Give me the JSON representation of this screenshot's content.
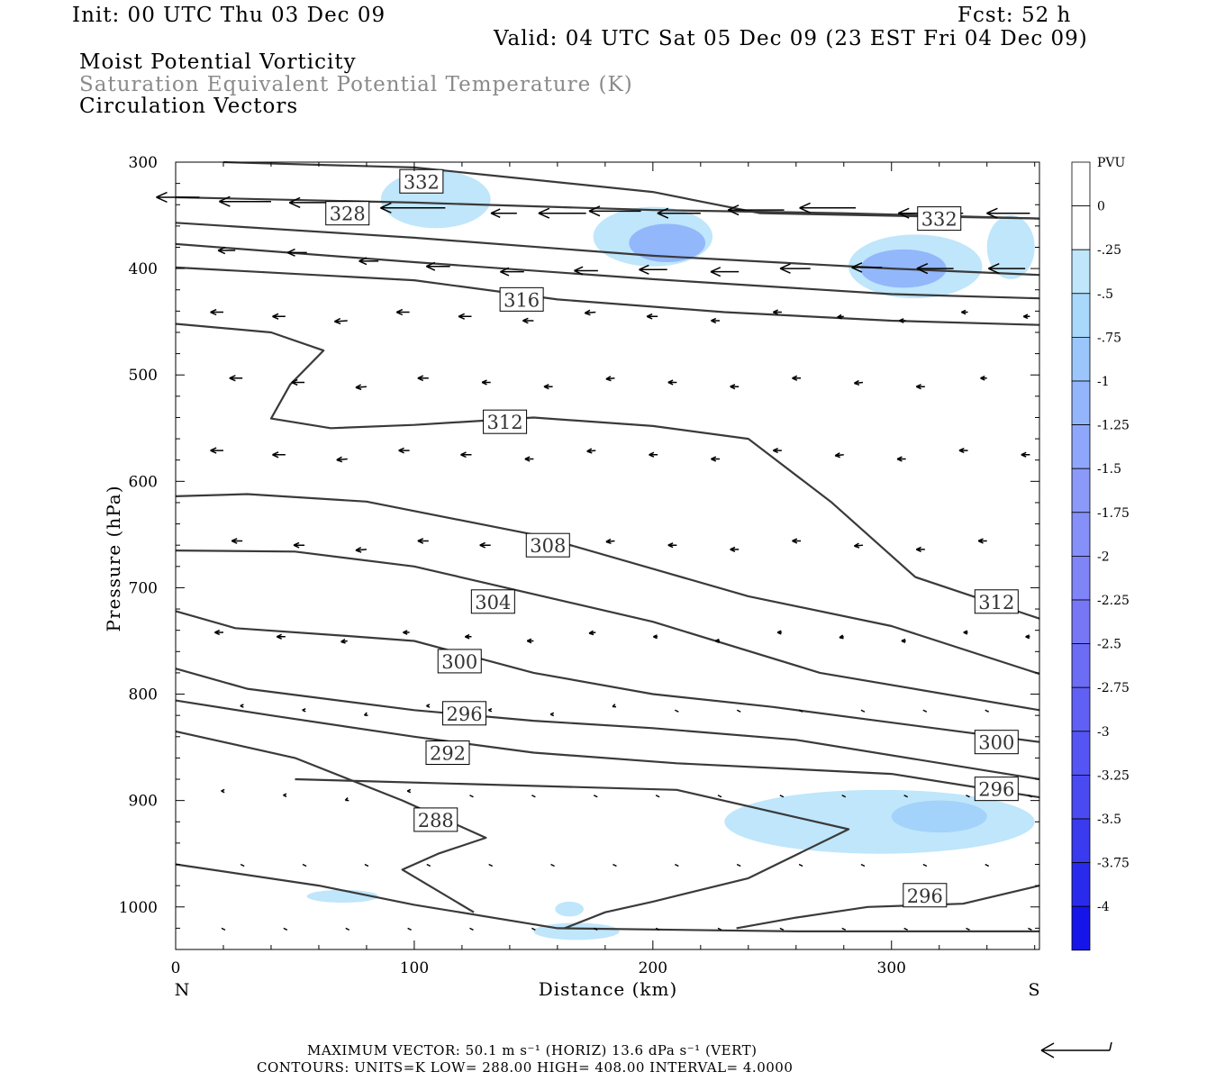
{
  "header": {
    "init": "Init: 00 UTC Thu 03 Dec 09",
    "fcst": "Fcst:   52 h",
    "valid": "Valid: 04 UTC Sat 05 Dec 09 (23 EST Fri 04 Dec 09)",
    "line1": "Moist Potential Vorticity",
    "line2": "Saturation Equivalent Potential Temperature (K)",
    "line3": "Circulation Vectors"
  },
  "footer": {
    "max_vector": "MAXIMUM VECTOR:  50.1 m s⁻¹ (HORIZ)        13.6 dPa s⁻¹ (VERT)",
    "contours": "CONTOURS:  UNITS=K  LOW=  288.00        HIGH=  408.00        INTERVAL=    4.0000"
  },
  "colors": {
    "contour": "#3a3a3a",
    "shade": [
      "#bfe6fb",
      "#a3d2fa",
      "#93b7fb",
      "#8b9ff9",
      "#7f85f7",
      "#6c6cf5",
      "#5555f3",
      "#3a3aee",
      "#1e1eea",
      "#0000e6"
    ]
  },
  "chart_data": {
    "type": "cross-section",
    "xlabel": "Distance (km)",
    "ylabel": "Pressure (hPa)",
    "xlim": [
      0,
      362
    ],
    "ylim": [
      1040,
      300
    ],
    "x_ticks": [
      "0",
      "100",
      "200",
      "300"
    ],
    "x_end_labels": {
      "left": "N",
      "right": "S"
    },
    "y_ticks": [
      "300",
      "400",
      "500",
      "600",
      "700",
      "800",
      "900",
      "1000"
    ],
    "colorbar": {
      "title": "PVU",
      "labels": [
        "0",
        "-.25",
        "-.5",
        "-.75",
        "-1",
        "-1.25",
        "-1.5",
        "-1.75",
        "-2",
        "-2.25",
        "-2.5",
        "-2.75",
        "-3",
        "-3.25",
        "-3.5",
        "-3.75",
        "-4"
      ]
    },
    "contour_labels": [
      {
        "text": "332",
        "x": 103,
        "p": 318
      },
      {
        "text": "328",
        "x": 72,
        "p": 348
      },
      {
        "text": "332",
        "x": 320,
        "p": 353
      },
      {
        "text": "316",
        "x": 145,
        "p": 429
      },
      {
        "text": "312",
        "x": 138,
        "p": 544
      },
      {
        "text": "308",
        "x": 156,
        "p": 660
      },
      {
        "text": "304",
        "x": 133,
        "p": 713
      },
      {
        "text": "312",
        "x": 344,
        "p": 713
      },
      {
        "text": "300",
        "x": 119,
        "p": 769
      },
      {
        "text": "296",
        "x": 121,
        "p": 818
      },
      {
        "text": "292",
        "x": 114,
        "p": 855
      },
      {
        "text": "300",
        "x": 344,
        "p": 845
      },
      {
        "text": "296",
        "x": 344,
        "p": 889
      },
      {
        "text": "288",
        "x": 109,
        "p": 918
      },
      {
        "text": "296",
        "x": 314,
        "p": 989
      }
    ],
    "theta_e_contours": [
      [
        [
          20,
          300
        ],
        [
          100,
          305
        ],
        [
          200,
          328
        ],
        [
          245,
          348
        ],
        [
          362,
          353
        ]
      ],
      [
        [
          0,
          333
        ],
        [
          100,
          338
        ],
        [
          200,
          345
        ],
        [
          280,
          348
        ],
        [
          362,
          353
        ]
      ],
      [
        [
          0,
          357
        ],
        [
          100,
          371
        ],
        [
          200,
          388
        ],
        [
          300,
          400
        ],
        [
          362,
          406
        ]
      ],
      [
        [
          0,
          377
        ],
        [
          100,
          394
        ],
        [
          200,
          410
        ],
        [
          300,
          424
        ],
        [
          362,
          428
        ]
      ],
      [
        [
          0,
          399
        ],
        [
          100,
          411
        ],
        [
          160,
          429
        ],
        [
          230,
          441
        ],
        [
          300,
          449
        ],
        [
          362,
          453
        ]
      ],
      [
        [
          0,
          452
        ],
        [
          40,
          460
        ],
        [
          62,
          477
        ],
        [
          48,
          509
        ],
        [
          40,
          541
        ],
        [
          65,
          550
        ],
        [
          100,
          547
        ],
        [
          150,
          540
        ],
        [
          200,
          548
        ],
        [
          240,
          560
        ],
        [
          275,
          620
        ],
        [
          310,
          690
        ],
        [
          362,
          729
        ]
      ],
      [
        [
          0,
          614
        ],
        [
          30,
          612
        ],
        [
          80,
          619
        ],
        [
          150,
          650
        ],
        [
          240,
          708
        ],
        [
          300,
          736
        ],
        [
          362,
          781
        ]
      ],
      [
        [
          0,
          665
        ],
        [
          50,
          666
        ],
        [
          100,
          680
        ],
        [
          200,
          732
        ],
        [
          270,
          780
        ],
        [
          362,
          815
        ]
      ],
      [
        [
          0,
          722
        ],
        [
          25,
          738
        ],
        [
          70,
          745
        ],
        [
          100,
          750
        ],
        [
          150,
          780
        ],
        [
          200,
          800
        ],
        [
          250,
          812
        ],
        [
          362,
          845
        ]
      ],
      [
        [
          0,
          776
        ],
        [
          30,
          795
        ],
        [
          100,
          815
        ],
        [
          150,
          825
        ],
        [
          200,
          832
        ],
        [
          260,
          843
        ],
        [
          362,
          880
        ]
      ],
      [
        [
          0,
          806
        ],
        [
          40,
          820
        ],
        [
          100,
          840
        ],
        [
          150,
          855
        ],
        [
          210,
          865
        ],
        [
          300,
          875
        ],
        [
          362,
          897
        ]
      ],
      [
        [
          0,
          835
        ],
        [
          50,
          860
        ],
        [
          95,
          900
        ],
        [
          130,
          935
        ],
        [
          110,
          950
        ],
        [
          95,
          965
        ],
        [
          125,
          1005
        ]
      ],
      [
        [
          163,
          1020
        ],
        [
          180,
          1005
        ],
        [
          200,
          995
        ],
        [
          240,
          973
        ],
        [
          282,
          927
        ],
        [
          210,
          890
        ],
        [
          50,
          880
        ]
      ],
      [
        [
          235,
          1020
        ],
        [
          260,
          1010
        ],
        [
          290,
          1000
        ],
        [
          330,
          997
        ],
        [
          362,
          980
        ]
      ],
      [
        [
          0,
          960
        ],
        [
          60,
          980
        ],
        [
          100,
          998
        ],
        [
          160,
          1020
        ],
        [
          260,
          1023
        ],
        [
          362,
          1023
        ]
      ]
    ],
    "pv_shading": [
      {
        "x": 109,
        "p": 335,
        "rx": 23,
        "rp": 27,
        "level": 1
      },
      {
        "x": 200,
        "p": 370,
        "rx": 25,
        "rp": 28,
        "level": 1
      },
      {
        "x": 206,
        "p": 376,
        "rx": 16,
        "rp": 18,
        "level": 3
      },
      {
        "x": 310,
        "p": 398,
        "rx": 28,
        "rp": 30,
        "level": 1
      },
      {
        "x": 305,
        "p": 400,
        "rx": 18,
        "rp": 18,
        "level": 3
      },
      {
        "x": 295,
        "p": 920,
        "rx": 65,
        "rp": 30,
        "level": 1
      },
      {
        "x": 320,
        "p": 915,
        "rx": 20,
        "rp": 15,
        "level": 2
      },
      {
        "x": 70,
        "p": 990,
        "rx": 15,
        "rp": 6,
        "level": 1
      },
      {
        "x": 165,
        "p": 1002,
        "rx": 6,
        "rp": 7,
        "level": 1
      },
      {
        "x": 168,
        "p": 1023,
        "rx": 18,
        "rp": 8,
        "level": 1
      },
      {
        "x": 350,
        "p": 380,
        "rx": 10,
        "rp": 30,
        "level": 1
      }
    ],
    "vectors_upper": [
      {
        "x": 10,
        "p": 333,
        "u": -20,
        "w": 0
      },
      {
        "x": 40,
        "p": 337,
        "u": -24,
        "w": 0
      },
      {
        "x": 73,
        "p": 338,
        "u": -28,
        "w": 0
      },
      {
        "x": 113,
        "p": 343,
        "u": -30,
        "w": 0
      },
      {
        "x": 143,
        "p": 348,
        "u": -12,
        "w": 0
      },
      {
        "x": 172,
        "p": 348,
        "u": -22,
        "w": 0
      },
      {
        "x": 195,
        "p": 346,
        "u": -24,
        "w": 0
      },
      {
        "x": 220,
        "p": 348,
        "u": -20,
        "w": 0
      },
      {
        "x": 255,
        "p": 345,
        "u": -26,
        "w": 0
      },
      {
        "x": 285,
        "p": 343,
        "u": -26,
        "w": 0
      },
      {
        "x": 330,
        "p": 348,
        "u": -30,
        "w": 0
      },
      {
        "x": 358,
        "p": 348,
        "u": -20,
        "w": 0
      },
      {
        "x": 25,
        "p": 383,
        "u": -8,
        "w": 0
      },
      {
        "x": 55,
        "p": 385,
        "u": -9,
        "w": 0
      },
      {
        "x": 85,
        "p": 393,
        "u": -9,
        "w": 0
      },
      {
        "x": 115,
        "p": 398,
        "u": -11,
        "w": 0
      },
      {
        "x": 146,
        "p": 403,
        "u": -11,
        "w": 0
      },
      {
        "x": 177,
        "p": 402,
        "u": -11,
        "w": 0
      },
      {
        "x": 206,
        "p": 401,
        "u": -13,
        "w": 0
      },
      {
        "x": 236,
        "p": 403,
        "u": -13,
        "w": 0
      },
      {
        "x": 266,
        "p": 400,
        "u": -14,
        "w": 0
      },
      {
        "x": 296,
        "p": 399,
        "u": -14,
        "w": 0
      },
      {
        "x": 326,
        "p": 400,
        "u": -17,
        "w": 0
      },
      {
        "x": 356,
        "p": 400,
        "u": -17,
        "w": 0
      }
    ]
  }
}
